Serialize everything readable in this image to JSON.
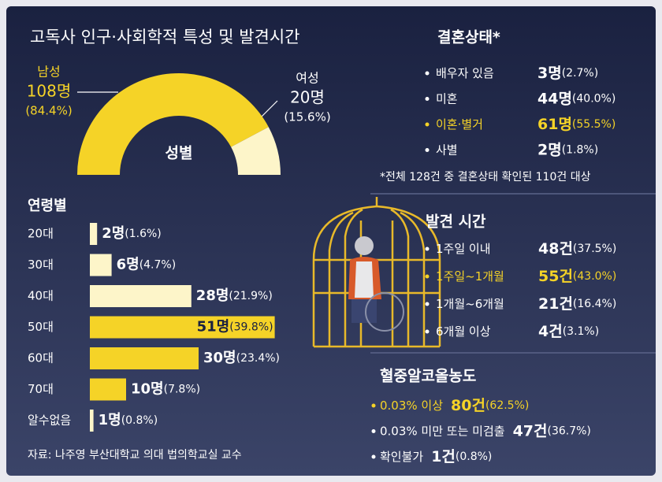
{
  "title": "고독사 인구·사회학적 특성 및 발견시간",
  "chart_data": [
    {
      "type": "half-donut",
      "title": "성별",
      "categories": [
        "남성",
        "여성"
      ],
      "values": [
        108,
        20
      ],
      "value_labels": [
        "108명",
        "20명"
      ],
      "percent_labels": [
        "(84.4%)",
        "(15.6%)"
      ],
      "colors": [
        "#f5d327",
        "#fdf5c9"
      ],
      "label_colors": [
        "#f5d327",
        "#ffffff"
      ]
    },
    {
      "type": "bar",
      "title": "연령별",
      "categories": [
        "20대",
        "30대",
        "40대",
        "50대",
        "60대",
        "70대",
        "알수없음"
      ],
      "values": [
        2,
        6,
        28,
        51,
        30,
        10,
        1
      ],
      "value_labels": [
        "2명",
        "6명",
        "28명",
        "51명",
        "30명",
        "10명",
        "1명"
      ],
      "percent_labels": [
        "(1.6%)",
        "(4.7%)",
        "(21.9%)",
        "(39.8%)",
        "(23.4%)",
        "(7.8%)",
        "(0.8%)"
      ],
      "colors": [
        "#fdf5c9",
        "#fdf5c9",
        "#fdf5c9",
        "#f5d327",
        "#f5d327",
        "#f5d327",
        "#fdf5c9"
      ]
    }
  ],
  "marital_status": {
    "title": "결혼상태*",
    "items": [
      {
        "label": "배우자 있음",
        "count": "3명",
        "percent": "(2.7%)",
        "color": "#ffffff"
      },
      {
        "label": "미혼",
        "count": "44명",
        "percent": "(40.0%)",
        "color": "#ffffff"
      },
      {
        "label": "이혼·별거",
        "count": "61명",
        "percent": "(55.5%)",
        "color": "#f5d327"
      },
      {
        "label": "사별",
        "count": "2명",
        "percent": "(1.8%)",
        "color": "#ffffff"
      }
    ],
    "note": "*전체 128건 중 결혼상태 확인된 110건 대상"
  },
  "discovery_time": {
    "title": "발견 시간",
    "items": [
      {
        "label": "1주일 이내",
        "count": "48건",
        "percent": "(37.5%)",
        "color": "#ffffff"
      },
      {
        "label": "1주일~1개월",
        "count": "55건",
        "percent": "(43.0%)",
        "color": "#f5d327"
      },
      {
        "label": "1개월~6개월",
        "count": "21건",
        "percent": "(16.4%)",
        "color": "#ffffff"
      },
      {
        "label": "6개월 이상",
        "count": "4건",
        "percent": "(3.1%)",
        "color": "#ffffff"
      }
    ]
  },
  "blood_alcohol": {
    "title": "혈중알코올농도",
    "items": [
      {
        "label": "0.03% 이상",
        "count": "80건",
        "percent": "(62.5%)",
        "color": "#f5d327"
      },
      {
        "label": "0.03% 미만 또는 미검출",
        "count": "47건",
        "percent": "(36.7%)",
        "color": "#ffffff"
      },
      {
        "label": "확인불가",
        "count": "1건",
        "percent": "(0.8%)",
        "color": "#ffffff"
      }
    ]
  },
  "source": "자료: 나주영 부산대학교 의대 법의학교실 교수"
}
